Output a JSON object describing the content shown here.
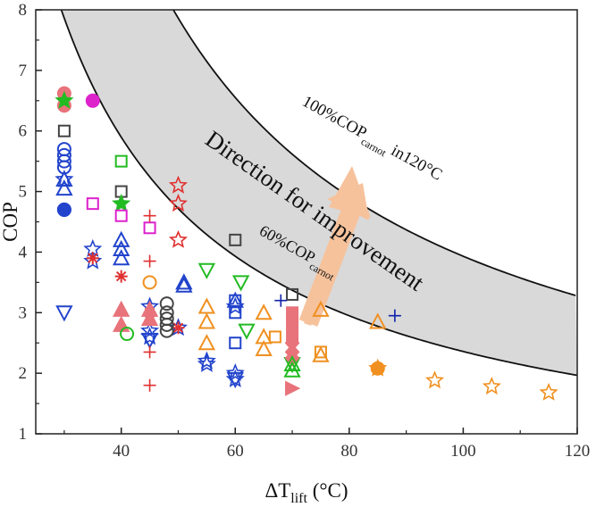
{
  "chart_data": {
    "type": "scatter",
    "title": "",
    "xlabel": {
      "main": "ΔT",
      "sub": "lift",
      "unit": " (°C)"
    },
    "ylabel": "COP",
    "xlim": [
      25,
      120
    ],
    "ylim": [
      1,
      8
    ],
    "xticks": [
      40,
      60,
      80,
      100,
      120
    ],
    "yticks": [
      1,
      2,
      3,
      4,
      5,
      6,
      7,
      8
    ],
    "grid": false,
    "temperature_sink_K": 393.15,
    "band": {
      "upper_fraction": 1.0,
      "lower_fraction": 0.6,
      "fill": "#d9d9d9",
      "edge": "#111111"
    },
    "annotations": {
      "upper_label": {
        "a": "100%COP",
        "sub": "carnot",
        "b": "  in120°C"
      },
      "lower_label": {
        "a": "60%COP",
        "sub": "carnot"
      },
      "direction": "Direction for improvement",
      "arrow_color": "#f6c29c"
    },
    "colors": {
      "pink": "#e8737a",
      "blue": "#2244cc",
      "green": "#22bb22",
      "magenta": "#dd22cc",
      "orange": "#f09020",
      "grey": "#444444",
      "red": "#e03030",
      "darkblue": "#1122aa"
    },
    "series": [
      {
        "marker": "circle",
        "color": "pink",
        "filled": true,
        "points": [
          [
            30,
            6.62
          ],
          [
            30,
            6.42
          ]
        ]
      },
      {
        "marker": "star",
        "color": "green",
        "filled": true,
        "points": [
          [
            30,
            6.5
          ]
        ]
      },
      {
        "marker": "circle",
        "color": "magenta",
        "filled": true,
        "points": [
          [
            35,
            6.5
          ]
        ]
      },
      {
        "marker": "square",
        "color": "grey",
        "filled": false,
        "points": [
          [
            30,
            6.0
          ],
          [
            40,
            5.0
          ],
          [
            60,
            4.2
          ],
          [
            70,
            3.3
          ]
        ]
      },
      {
        "marker": "circle",
        "color": "blue",
        "filled": false,
        "points": [
          [
            30,
            5.7
          ],
          [
            30,
            5.6
          ],
          [
            30,
            5.5
          ],
          [
            30,
            5.4
          ],
          [
            30,
            4.7
          ]
        ]
      },
      {
        "marker": "circle",
        "color": "blue",
        "filled": true,
        "points": [
          [
            30,
            4.7
          ]
        ]
      },
      {
        "marker": "triangle-up",
        "color": "blue",
        "filled": false,
        "points": [
          [
            30,
            5.2
          ],
          [
            30,
            5.05
          ],
          [
            40,
            4.2
          ],
          [
            40,
            4.05
          ],
          [
            40,
            3.9
          ],
          [
            51,
            3.45
          ],
          [
            51,
            3.5
          ],
          [
            60,
            3.2
          ]
        ]
      },
      {
        "marker": "star",
        "color": "blue",
        "filled": false,
        "points": [
          [
            30,
            5.2
          ],
          [
            35,
            4.05
          ],
          [
            35,
            3.85
          ],
          [
            45,
            3.1
          ],
          [
            45,
            2.7
          ],
          [
            45,
            2.6
          ],
          [
            50,
            2.75
          ],
          [
            55,
            2.2
          ],
          [
            55,
            2.15
          ],
          [
            60,
            3.1
          ],
          [
            60,
            2.0
          ],
          [
            60,
            1.9
          ]
        ]
      },
      {
        "marker": "square",
        "color": "green",
        "filled": false,
        "points": [
          [
            40,
            5.5
          ]
        ]
      },
      {
        "marker": "star",
        "color": "green",
        "filled": true,
        "points": [
          [
            40,
            4.8
          ]
        ]
      },
      {
        "marker": "square",
        "color": "magenta",
        "filled": false,
        "points": [
          [
            35,
            4.8
          ],
          [
            40,
            4.6
          ],
          [
            45,
            4.4
          ]
        ]
      },
      {
        "marker": "triangle-down",
        "color": "blue",
        "filled": false,
        "points": [
          [
            30,
            3.0
          ],
          [
            45,
            2.55
          ],
          [
            60,
            1.9
          ]
        ]
      },
      {
        "marker": "asterisk",
        "color": "red",
        "filled": false,
        "points": [
          [
            35,
            3.9
          ],
          [
            40,
            3.6
          ],
          [
            45,
            3.0
          ],
          [
            50,
            2.75
          ]
        ]
      },
      {
        "marker": "star",
        "color": "red",
        "filled": false,
        "points": [
          [
            50,
            5.1
          ],
          [
            50,
            4.8
          ],
          [
            50,
            4.2
          ]
        ]
      },
      {
        "marker": "plus",
        "color": "red",
        "filled": false,
        "points": [
          [
            45,
            4.6
          ],
          [
            45,
            3.85
          ],
          [
            45,
            2.35
          ],
          [
            45,
            1.8
          ]
        ]
      },
      {
        "marker": "circle",
        "color": "orange",
        "filled": false,
        "points": [
          [
            45,
            3.5
          ]
        ]
      },
      {
        "marker": "triangle-up",
        "color": "pink",
        "filled": true,
        "points": [
          [
            40,
            3.05
          ],
          [
            40,
            2.8
          ],
          [
            45,
            3.05
          ],
          [
            45,
            2.9
          ]
        ]
      },
      {
        "marker": "circle",
        "color": "green",
        "filled": false,
        "points": [
          [
            41,
            2.65
          ]
        ]
      },
      {
        "marker": "circle",
        "color": "grey",
        "filled": false,
        "points": [
          [
            48,
            3.15
          ],
          [
            48,
            3.0
          ],
          [
            48,
            2.9
          ],
          [
            48,
            2.8
          ],
          [
            48,
            2.7
          ]
        ]
      },
      {
        "marker": "triangle-down",
        "color": "green",
        "filled": false,
        "points": [
          [
            55,
            3.7
          ],
          [
            61,
            3.5
          ],
          [
            62,
            2.7
          ],
          [
            70,
            2.15
          ]
        ]
      },
      {
        "marker": "square",
        "color": "blue",
        "filled": false,
        "points": [
          [
            60,
            3.2
          ],
          [
            60,
            3.0
          ],
          [
            60,
            2.5
          ]
        ]
      },
      {
        "marker": "triangle-up",
        "color": "orange",
        "filled": false,
        "points": [
          [
            55,
            3.1
          ],
          [
            55,
            2.85
          ],
          [
            55,
            2.5
          ],
          [
            65,
            3.0
          ],
          [
            65,
            2.6
          ],
          [
            65,
            2.4
          ],
          [
            75,
            3.05
          ],
          [
            75,
            2.3
          ],
          [
            85,
            2.85
          ]
        ]
      },
      {
        "marker": "square",
        "color": "orange",
        "filled": false,
        "points": [
          [
            67,
            2.6
          ],
          [
            75,
            2.35
          ]
        ]
      },
      {
        "marker": "plus",
        "color": "darkblue",
        "filled": false,
        "points": [
          [
            68,
            3.2
          ],
          [
            88,
            2.95
          ]
        ]
      },
      {
        "marker": "square",
        "color": "pink",
        "filled": true,
        "points": [
          [
            70,
            3.0
          ],
          [
            70,
            2.8
          ],
          [
            70,
            2.6
          ]
        ]
      },
      {
        "marker": "diamond",
        "color": "pink",
        "filled": true,
        "points": [
          [
            70,
            2.5
          ],
          [
            70,
            2.35
          ],
          [
            70,
            2.25
          ]
        ]
      },
      {
        "marker": "triangle-up",
        "color": "green",
        "filled": false,
        "points": [
          [
            70,
            2.15
          ],
          [
            70,
            2.05
          ]
        ]
      },
      {
        "marker": "triangle-right",
        "color": "pink",
        "filled": true,
        "points": [
          [
            70,
            1.75
          ]
        ]
      },
      {
        "marker": "star",
        "color": "orange",
        "filled": false,
        "points": [
          [
            85,
            2.08
          ],
          [
            95,
            1.88
          ],
          [
            105,
            1.78
          ],
          [
            115,
            1.68
          ]
        ]
      },
      {
        "marker": "circle",
        "color": "orange",
        "filled": true,
        "points": [
          [
            85,
            2.08
          ]
        ]
      }
    ]
  }
}
